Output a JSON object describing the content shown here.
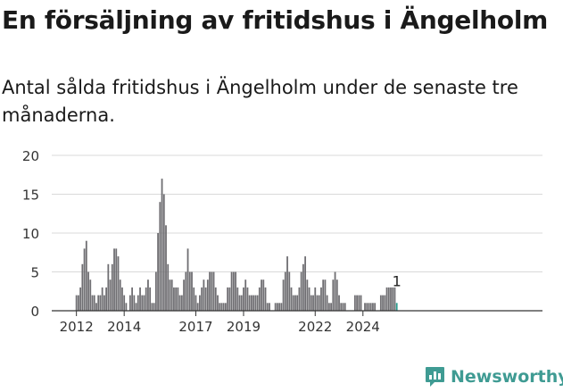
{
  "title": "En försäljning av fritidshus i Ängelholm",
  "subtitle": "Antal sålda fritidshus i Ängelholm under de senaste tre månaderna.",
  "brand": {
    "name": "Newsworthy"
  },
  "colors": {
    "bar": "#6f6e72",
    "highlight": "#2a9d8f",
    "axis": "#333333",
    "grid": "#d9d9d9",
    "text": "#333333",
    "brand": "#3f9b93"
  },
  "chart_data": {
    "type": "bar",
    "title": "",
    "xlabel": "",
    "ylabel": "",
    "ylim": [
      0,
      20
    ],
    "yticks": [
      0,
      5,
      10,
      15,
      20
    ],
    "xticks": [
      "2012",
      "2014",
      "2017",
      "2019",
      "2022",
      "2024"
    ],
    "xtick_months": [
      "2012-01",
      "2014-01",
      "2017-01",
      "2019-01",
      "2022-01",
      "2024-01"
    ],
    "start_month": "2011-01",
    "highlight_label": "1",
    "values": [
      0,
      0,
      0,
      0,
      0,
      0,
      0,
      0,
      0,
      0,
      0,
      0,
      2,
      2,
      3,
      6,
      8,
      9,
      5,
      4,
      2,
      2,
      1,
      2,
      2,
      3,
      2,
      3,
      6,
      4,
      6,
      8,
      8,
      7,
      4,
      3,
      2,
      1,
      0,
      2,
      3,
      2,
      1,
      2,
      3,
      2,
      2,
      3,
      4,
      3,
      1,
      1,
      5,
      10,
      14,
      17,
      15,
      11,
      6,
      4,
      4,
      3,
      3,
      3,
      2,
      2,
      4,
      5,
      8,
      5,
      5,
      3,
      2,
      1,
      2,
      3,
      4,
      3,
      4,
      5,
      5,
      5,
      3,
      2,
      1,
      1,
      1,
      1,
      3,
      3,
      5,
      5,
      5,
      3,
      2,
      2,
      3,
      4,
      3,
      2,
      2,
      2,
      2,
      2,
      3,
      4,
      4,
      3,
      1,
      1,
      0,
      0,
      1,
      1,
      1,
      1,
      4,
      5,
      7,
      5,
      3,
      2,
      2,
      2,
      3,
      5,
      6,
      7,
      4,
      3,
      2,
      2,
      3,
      2,
      2,
      3,
      4,
      4,
      2,
      1,
      1,
      4,
      5,
      4,
      2,
      1,
      1,
      1,
      0,
      0,
      0,
      0,
      2,
      2,
      2,
      2,
      0,
      1,
      1,
      1,
      1,
      1,
      1,
      0,
      0,
      2,
      2,
      2,
      3,
      3,
      3,
      3,
      3,
      1
    ]
  }
}
